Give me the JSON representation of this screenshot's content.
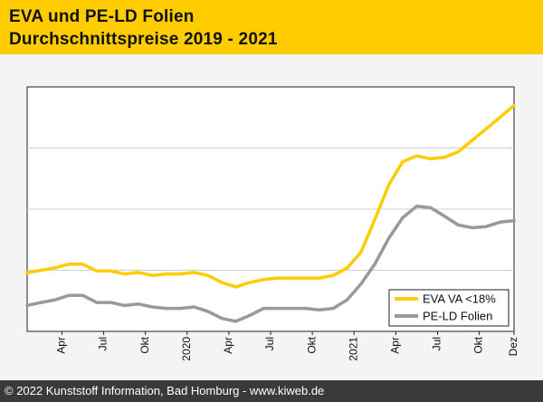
{
  "header": {
    "title_line1": "EVA und PE-LD Folien",
    "title_line2": "Durchschnittspreise 2019 - 2021"
  },
  "footer": {
    "text": "© 2022 Kunststoff Information, Bad Homburg - www.kiweb.de"
  },
  "colors": {
    "header_bg": "#ffcc00",
    "eva": "#ffcc00",
    "pe_ld": "#999999",
    "grid": "#d0d0d0",
    "footer_bg": "#3a3a3a"
  },
  "chart_data": {
    "type": "line",
    "title": "EVA und PE-LD Folien Durchschnittspreise 2019 - 2021",
    "xlabel": "",
    "ylabel": "",
    "x_range": [
      0,
      35
    ],
    "ylim": [
      0,
      100
    ],
    "grid": true,
    "y_axis_labels": "none",
    "tick_labels": [
      {
        "label": "Apr",
        "x": 2.5
      },
      {
        "label": "Jul",
        "x": 5.5
      },
      {
        "label": "Okt",
        "x": 8.5
      },
      {
        "label": "2020",
        "x": 11.5
      },
      {
        "label": "Apr",
        "x": 14.5
      },
      {
        "label": "Jul",
        "x": 17.5
      },
      {
        "label": "Okt",
        "x": 20.5
      },
      {
        "label": "2021",
        "x": 23.5
      },
      {
        "label": "Apr",
        "x": 26.5
      },
      {
        "label": "Jul",
        "x": 29.5
      },
      {
        "label": "Okt",
        "x": 32.5
      },
      {
        "label": "Dez",
        "x": 35
      }
    ],
    "legend_position": "bottom-right",
    "series": [
      {
        "name": "EVA VA <18%",
        "color": "#ffcc00",
        "x": [
          0,
          1,
          2,
          3,
          4,
          5,
          6,
          7,
          8,
          9,
          10,
          11,
          12,
          13,
          14,
          15,
          16,
          17,
          18,
          19,
          20,
          21,
          22,
          23,
          24,
          25,
          26,
          27,
          28,
          29,
          30,
          31,
          32,
          33,
          34,
          35
        ],
        "values": [
          24,
          25,
          26,
          27.5,
          27.5,
          24.7,
          24.7,
          23.5,
          24.1,
          22.9,
          23.5,
          23.5,
          24.1,
          22.9,
          20,
          18.2,
          20,
          21.2,
          21.8,
          21.8,
          21.8,
          21.8,
          22.9,
          25.9,
          32.4,
          45.9,
          60,
          69.4,
          71.8,
          70.6,
          71.2,
          73.5,
          78.2,
          82.9,
          87.6,
          92.4
        ]
      },
      {
        "name": "PE-LD Folien",
        "color": "#999999",
        "x": [
          0,
          1,
          2,
          3,
          4,
          5,
          6,
          7,
          8,
          9,
          10,
          11,
          12,
          13,
          14,
          15,
          16,
          17,
          18,
          19,
          20,
          21,
          22,
          23,
          24,
          25,
          26,
          27,
          28,
          29,
          30,
          31,
          32,
          33,
          34,
          35
        ],
        "values": [
          10.6,
          11.8,
          12.9,
          14.7,
          14.7,
          11.8,
          11.8,
          10.6,
          11.2,
          10,
          9.4,
          9.4,
          10,
          8.2,
          5.3,
          4.1,
          6.5,
          9.4,
          9.4,
          9.4,
          9.4,
          8.8,
          9.4,
          12.9,
          19.4,
          27.6,
          38.2,
          46.5,
          51.2,
          50.6,
          47.1,
          43.5,
          42.4,
          42.9,
          44.7,
          45.3
        ]
      }
    ]
  }
}
